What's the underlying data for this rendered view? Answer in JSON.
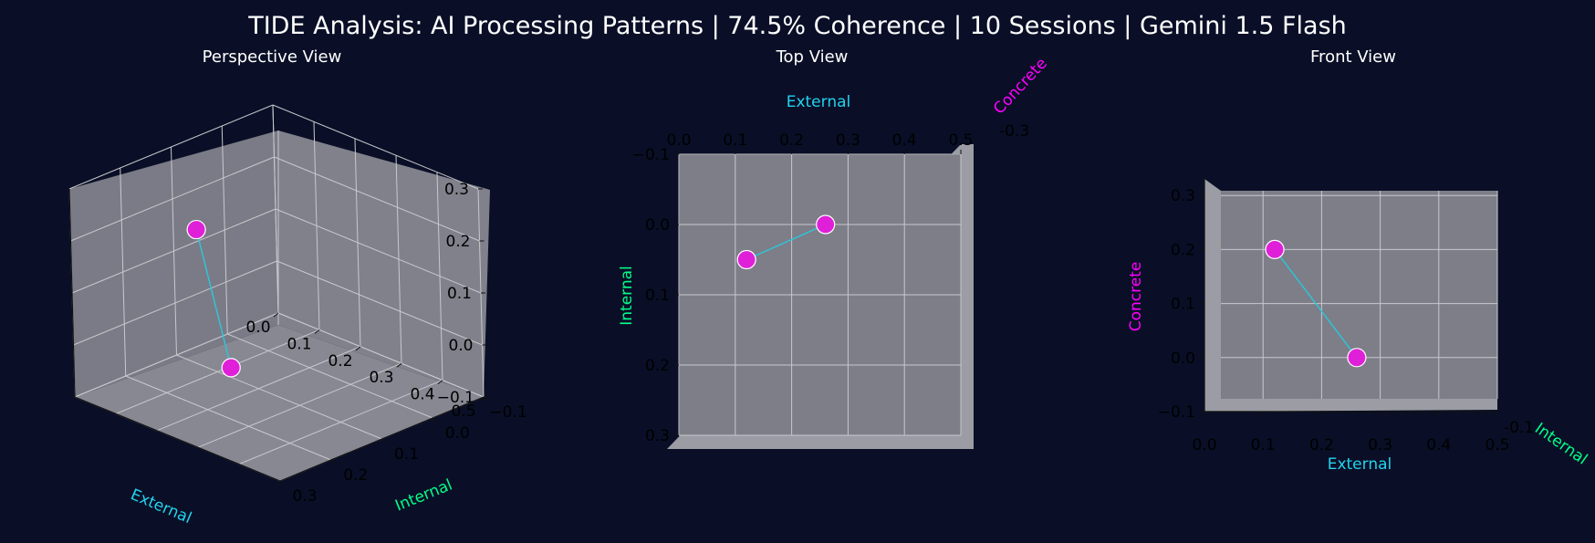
{
  "title": "TIDE Analysis: AI Processing Patterns | 74.5% Coherence | 10 Sessions | Gemini 1.5 Flash",
  "colors": {
    "background": "#0a0f27",
    "pane": "#7d7e88",
    "pane_dark": "#6e6f7a",
    "grid": "#c8c8cc",
    "text": "#ffffff",
    "tick": "#000000",
    "external": "#22d3ee",
    "internal": "#00ff88",
    "concrete": "#ff00ff",
    "point": "#e020d8",
    "line": "#2ec4d8"
  },
  "chart_data": [
    {
      "type": "scatter",
      "view": "perspective",
      "title": "Perspective View",
      "axes": {
        "x": {
          "label": "External",
          "ticks": [
            "0.0",
            "0.1",
            "0.2",
            "0.3",
            "0.4",
            "0.5"
          ]
        },
        "y": {
          "label": "Internal",
          "ticks": [
            "−0.1",
            "0.0",
            "0.1",
            "0.2",
            "0.3"
          ]
        },
        "z": {
          "label": "Concrete",
          "ticks": [
            "−0.1",
            "0.0",
            "0.1",
            "0.2",
            "0.3"
          ]
        }
      },
      "xlim": [
        0,
        0.5
      ],
      "ylim": [
        -0.1,
        0.3
      ],
      "zlim": [
        -0.1,
        0.3
      ],
      "points": [
        {
          "external": 0.12,
          "internal": 0.05,
          "concrete": 0.2
        },
        {
          "external": 0.26,
          "internal": 0.0,
          "concrete": 0.0
        }
      ]
    },
    {
      "type": "scatter",
      "view": "top",
      "title": "Top View",
      "axes": {
        "x": {
          "label": "External",
          "ticks": [
            "0.0",
            "0.1",
            "0.2",
            "0.3",
            "0.4",
            "0.5"
          ]
        },
        "y": {
          "label": "Internal",
          "ticks": [
            "−0.1",
            "0.0",
            "0.1",
            "0.2",
            "0.3"
          ]
        },
        "z": {
          "label": "Concrete"
        }
      },
      "xlim": [
        0,
        0.5
      ],
      "ylim": [
        -0.1,
        0.3
      ],
      "points": [
        {
          "external": 0.12,
          "internal": 0.05,
          "concrete": 0.2
        },
        {
          "external": 0.26,
          "internal": 0.0,
          "concrete": 0.0
        }
      ]
    },
    {
      "type": "scatter",
      "view": "front",
      "title": "Front View",
      "axes": {
        "x": {
          "label": "External",
          "ticks": [
            "0.0",
            "0.1",
            "0.2",
            "0.3",
            "0.4",
            "0.5"
          ]
        },
        "y": {
          "label": "Internal"
        },
        "z": {
          "label": "Concrete",
          "ticks": [
            "−0.1",
            "0.0",
            "0.1",
            "0.2",
            "0.3"
          ]
        }
      },
      "xlim": [
        0,
        0.5
      ],
      "zlim": [
        -0.1,
        0.3
      ],
      "points": [
        {
          "external": 0.12,
          "internal": 0.05,
          "concrete": 0.2
        },
        {
          "external": 0.26,
          "internal": 0.0,
          "concrete": 0.0
        }
      ]
    }
  ]
}
